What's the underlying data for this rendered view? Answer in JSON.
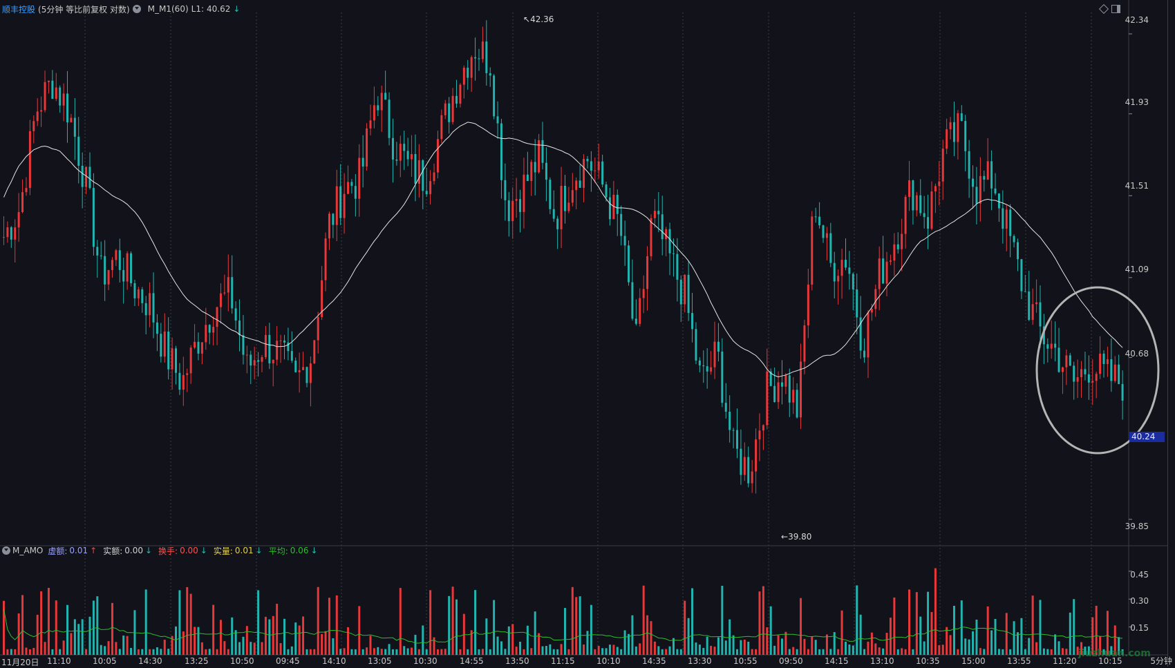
{
  "header": {
    "stock_name": "顺丰控股",
    "stock_desc": "(5分钟 等比前复权 对数)",
    "indicator": "M_M1(60)",
    "l1_label": "L1:",
    "l1_value": "40.62",
    "l1_arrow": "↓"
  },
  "volume_header": {
    "indicator": "M_AMO",
    "items": [
      {
        "label": "虚额:",
        "value": "0.01",
        "arrow": "↑"
      },
      {
        "label": "实额:",
        "value": "0.00",
        "arrow": "↓"
      },
      {
        "label": "换手:",
        "value": "0.00",
        "arrow": "↓"
      },
      {
        "label": "实量:",
        "value": "0.01",
        "arrow": "↓"
      },
      {
        "label": "平均:",
        "value": "0.06",
        "arrow": "↓"
      }
    ]
  },
  "price_axis": [
    "42.34",
    "41.93",
    "41.51",
    "41.09",
    "40.68",
    "39.85"
  ],
  "volume_axis": [
    "0.45",
    "0.30",
    "0.15"
  ],
  "time_axis": [
    "11月20日",
    "11:10",
    "10:05",
    "14:30",
    "13:25",
    "10:50",
    "09:45",
    "14:10",
    "13:05",
    "10:30",
    "14:55",
    "13:50",
    "11:15",
    "10:10",
    "14:35",
    "13:30",
    "10:55",
    "09:50",
    "14:15",
    "13:10",
    "10:35",
    "15:00",
    "13:55",
    "11:20",
    "10:15"
  ],
  "last_price_tag": "40.24",
  "high_mark": "42.36",
  "low_mark": "39.80",
  "period_label": "5分钟",
  "watermark": "jiuzhuan.com",
  "colors": {
    "up": "#e8383a",
    "down": "#22b5b0",
    "ma_line": "#e6e6e6",
    "volume_avg": "#2fbf2f",
    "highlight_circle": "#b4b4b4",
    "last_price_bg": "#1a2c9e"
  },
  "chart_data": {
    "type": "candlestick",
    "price_axis_ticks": [
      42.34,
      41.93,
      41.51,
      41.09,
      40.68,
      39.85
    ],
    "price_range": [
      39.75,
      42.45
    ],
    "period": "5分钟",
    "candle_count": 300,
    "key_points": [
      {
        "label": "high",
        "value": 42.36
      },
      {
        "label": "low",
        "value": 39.8
      },
      {
        "label": "last",
        "value": 40.24
      }
    ],
    "close_path_anchors": [
      41.3,
      41.45,
      41.95,
      42.1,
      41.95,
      41.6,
      41.1,
      41.2,
      41.05,
      40.95,
      40.7,
      40.55,
      40.78,
      40.95,
      41.0,
      40.62,
      40.75,
      40.7,
      40.55,
      40.7,
      41.35,
      41.55,
      41.6,
      42.05,
      41.8,
      41.65,
      41.6,
      41.85,
      42.1,
      42.28,
      42.2,
      41.45,
      41.55,
      41.7,
      41.4,
      41.6,
      41.7,
      41.55,
      41.35,
      40.75,
      41.4,
      41.2,
      41.0,
      40.55,
      40.7,
      40.2,
      40.1,
      40.5,
      40.6,
      40.4,
      41.5,
      41.15,
      41.2,
      40.75,
      41.1,
      41.3,
      41.55,
      41.4,
      41.75,
      41.85,
      41.55,
      41.6,
      41.3,
      41.0,
      40.8,
      40.7,
      40.55,
      40.65,
      40.58,
      40.55
    ],
    "ma_name": "M_M1(60)",
    "ma_last": 40.62,
    "volume_axis_ticks": [
      0.45,
      0.3,
      0.15
    ],
    "volume_indicator": "M_AMO"
  }
}
